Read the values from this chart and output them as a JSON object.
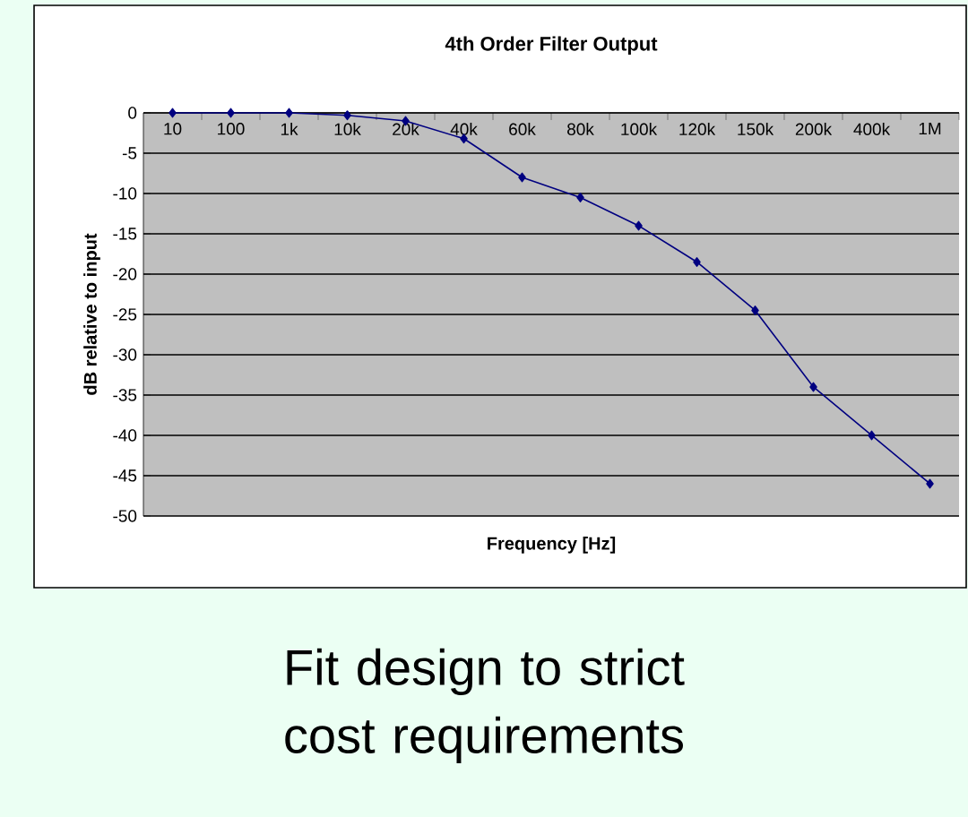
{
  "chart_data": {
    "type": "line",
    "title": "4th Order Filter Output",
    "xlabel": "Frequency [Hz]",
    "ylabel": "dB relative to input",
    "categories": [
      "10",
      "100",
      "1k",
      "10k",
      "20k",
      "40k",
      "60k",
      "80k",
      "100k",
      "120k",
      "150k",
      "200k",
      "400k",
      "1M"
    ],
    "series": [
      {
        "color": "#000080",
        "values": [
          0,
          0,
          0,
          -0.3,
          -1,
          -3.2,
          -8,
          -10.5,
          -14,
          -18.5,
          -24.5,
          -34,
          -40,
          -46
        ]
      }
    ],
    "ylim": [
      -50,
      0
    ],
    "yticks": [
      -50,
      -45,
      -40,
      -35,
      -30,
      -25,
      -20,
      -15,
      -10,
      -5,
      0
    ],
    "grid": "y",
    "marker": "diamond",
    "annotations": [
      "Fit design to strict cost requirements"
    ]
  }
}
